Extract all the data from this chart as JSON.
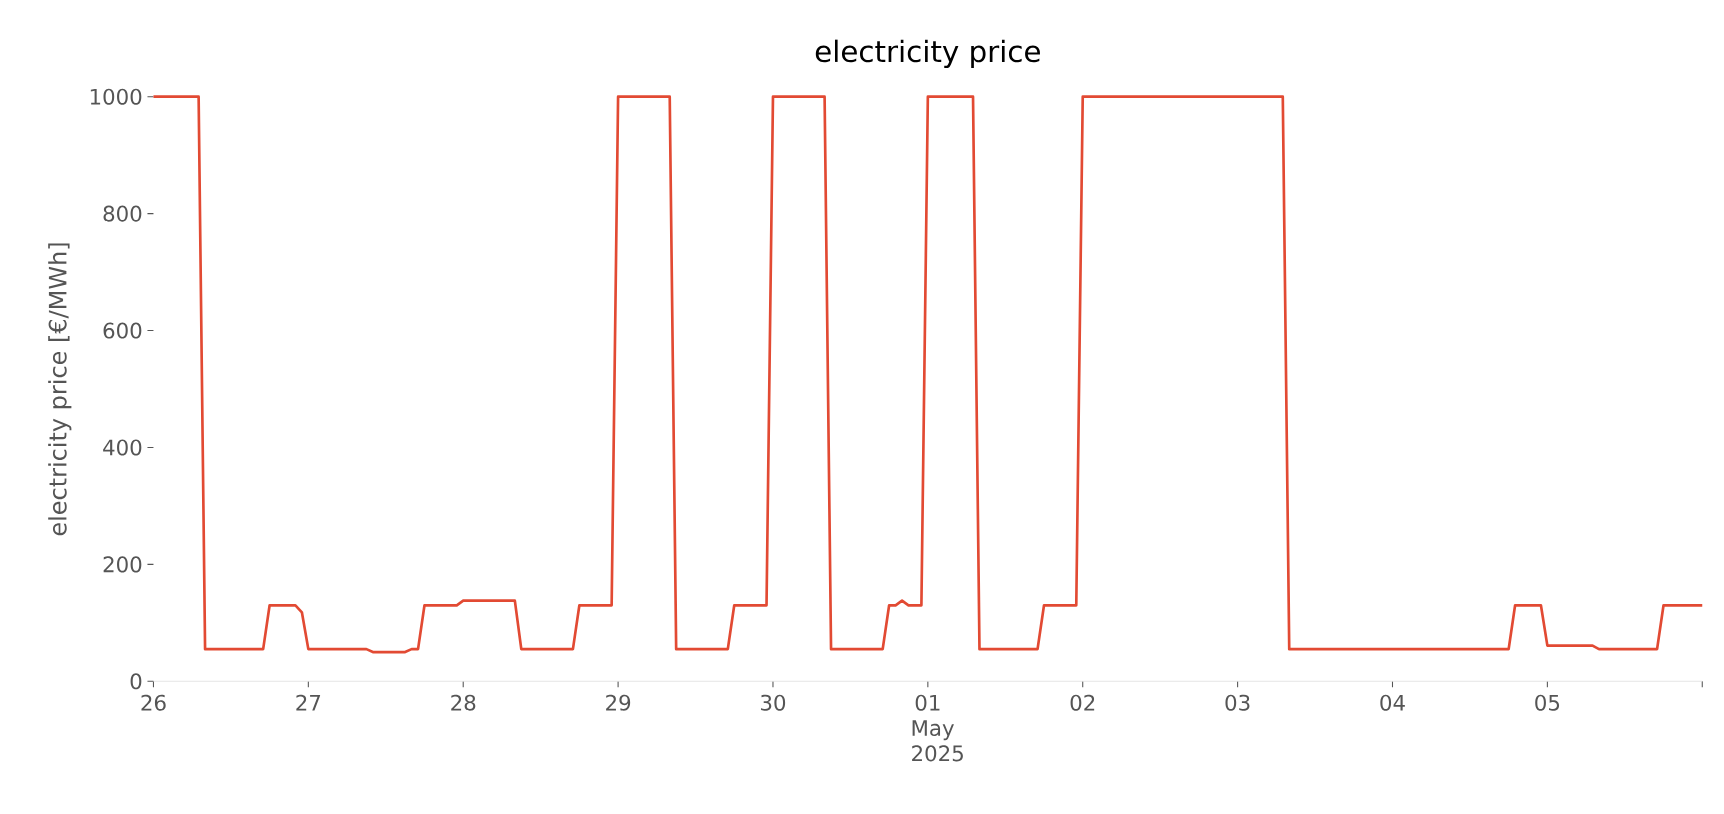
{
  "chart_data": {
    "type": "line",
    "title": "electricity price",
    "ylabel": "electricity price [€/MWh]",
    "color": "#e24a33",
    "x": [
      "2025-04-26T00:00",
      "2025-04-26T07:00",
      "2025-04-26T08:00",
      "2025-04-26T17:00",
      "2025-04-26T18:00",
      "2025-04-26T22:00",
      "2025-04-26T23:00",
      "2025-04-27T00:00",
      "2025-04-27T09:00",
      "2025-04-27T10:00",
      "2025-04-27T15:00",
      "2025-04-27T16:00",
      "2025-04-27T17:00",
      "2025-04-27T18:00",
      "2025-04-27T23:00",
      "2025-04-28T00:00",
      "2025-04-28T08:00",
      "2025-04-28T09:00",
      "2025-04-28T17:00",
      "2025-04-28T18:00",
      "2025-04-28T23:00",
      "2025-04-29T00:00",
      "2025-04-29T08:00",
      "2025-04-29T09:00",
      "2025-04-29T17:00",
      "2025-04-29T18:00",
      "2025-04-29T23:00",
      "2025-04-30T00:00",
      "2025-04-30T08:00",
      "2025-04-30T09:00",
      "2025-04-30T17:00",
      "2025-04-30T18:00",
      "2025-04-30T19:00",
      "2025-04-30T20:00",
      "2025-04-30T21:00",
      "2025-04-30T23:00",
      "2025-05-01T00:00",
      "2025-05-01T07:00",
      "2025-05-01T08:00",
      "2025-05-01T17:00",
      "2025-05-01T18:00",
      "2025-05-01T23:00",
      "2025-05-02T00:00",
      "2025-05-03T07:00",
      "2025-05-03T08:00",
      "2025-05-04T18:00",
      "2025-05-04T19:00",
      "2025-05-04T23:00",
      "2025-05-05T00:00",
      "2025-05-05T07:00",
      "2025-05-05T08:00",
      "2025-05-05T17:00",
      "2025-05-05T18:00",
      "2025-05-06T00:00"
    ],
    "values": [
      1000,
      1000,
      55,
      55,
      130,
      130,
      118,
      55,
      55,
      50,
      50,
      55,
      55,
      130,
      130,
      138,
      138,
      55,
      55,
      130,
      130,
      1000,
      1000,
      55,
      55,
      130,
      130,
      1000,
      1000,
      55,
      55,
      130,
      130,
      138,
      130,
      130,
      1000,
      1000,
      55,
      55,
      130,
      130,
      1000,
      1000,
      55,
      55,
      130,
      130,
      61,
      61,
      55,
      55,
      130,
      130
    ],
    "xlim": [
      "2025-04-26T00:00",
      "2025-05-06T00:00"
    ],
    "ylim": [
      0,
      1000
    ],
    "xticks": [
      {
        "value": "2025-04-26",
        "label": "26"
      },
      {
        "value": "2025-04-27",
        "label": "27"
      },
      {
        "value": "2025-04-28",
        "label": "28"
      },
      {
        "value": "2025-04-29",
        "label": "29"
      },
      {
        "value": "2025-04-30",
        "label": "30"
      },
      {
        "value": "2025-05-01",
        "label": "01 May 2025"
      },
      {
        "value": "2025-05-02",
        "label": "02"
      },
      {
        "value": "2025-05-03",
        "label": "03"
      },
      {
        "value": "2025-05-04",
        "label": "04"
      },
      {
        "value": "2025-05-05",
        "label": "05"
      },
      {
        "value": "2025-05-06",
        "label": null
      }
    ],
    "yticks": [
      0,
      200,
      400,
      600,
      800,
      1000
    ]
  }
}
